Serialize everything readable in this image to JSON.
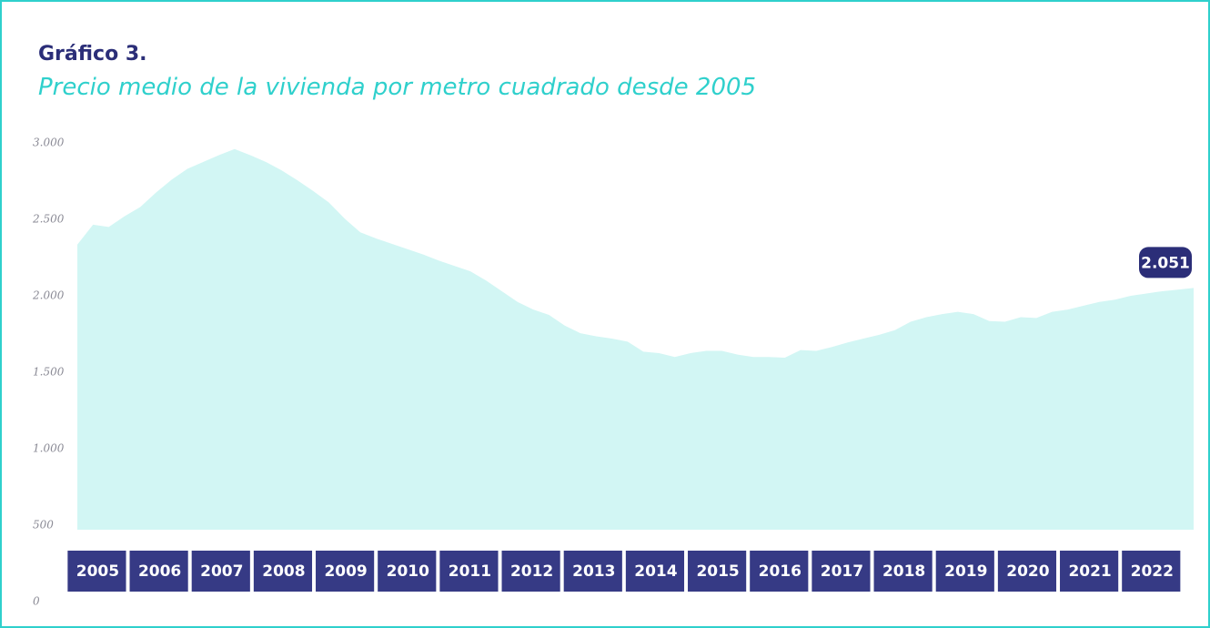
{
  "chart_data": {
    "type": "area",
    "title": "Gráfico 3.",
    "subtitle": "Precio medio de la vivienda por metro cuadrado desde 2005",
    "categories": [
      "2005",
      null,
      null,
      null,
      "2006",
      null,
      null,
      null,
      "2007",
      null,
      null,
      null,
      "2008",
      null,
      null,
      null,
      "2009",
      null,
      null,
      null,
      "2010",
      null,
      null,
      null,
      "2011",
      null,
      null,
      null,
      "2012",
      null,
      null,
      null,
      "2013",
      null,
      null,
      null,
      "2014",
      null,
      null,
      null,
      "2015",
      null,
      null,
      null,
      "2016",
      null,
      null,
      null,
      "2017",
      null,
      null,
      null,
      "2018",
      null,
      null,
      null,
      "2019",
      null,
      null,
      null,
      "2020",
      null,
      null,
      null,
      "2021",
      null,
      null,
      null,
      "2022",
      null,
      null,
      null
    ],
    "values": [
      2335,
      2465,
      2450,
      2520,
      2580,
      2675,
      2760,
      2830,
      2875,
      2920,
      2960,
      2920,
      2875,
      2820,
      2755,
      2685,
      2610,
      2505,
      2415,
      2375,
      2340,
      2305,
      2270,
      2230,
      2195,
      2160,
      2100,
      2030,
      1960,
      1910,
      1875,
      1805,
      1755,
      1735,
      1720,
      1700,
      1635,
      1625,
      1600,
      1625,
      1640,
      1640,
      1615,
      1600,
      1600,
      1595,
      1645,
      1640,
      1665,
      1695,
      1720,
      1745,
      1775,
      1830,
      1860,
      1880,
      1895,
      1880,
      1835,
      1830,
      1860,
      1855,
      1895,
      1910,
      1935,
      1960,
      1975,
      2000,
      2015,
      2030,
      2040,
      2051
    ],
    "value_labels": [
      null,
      null,
      null,
      null,
      null,
      null,
      null,
      null,
      null,
      null,
      null,
      null,
      null,
      null,
      null,
      null,
      null,
      null,
      null,
      null,
      null,
      null,
      null,
      null,
      null,
      null,
      null,
      null,
      null,
      null,
      null,
      null,
      null,
      null,
      null,
      null,
      null,
      null,
      null,
      null,
      null,
      null,
      null,
      null,
      null,
      null,
      null,
      null,
      null,
      null,
      null,
      null,
      null,
      null,
      null,
      null,
      null,
      null,
      null,
      null,
      null,
      null,
      null,
      null,
      null,
      null,
      null,
      null,
      null,
      null,
      null,
      "2.051"
    ],
    "color": "#d2f6f4",
    "ylim": [
      0,
      3000
    ],
    "yticks": [
      0,
      {
        "value": 500,
        "label": "500"
      },
      {
        "value": 1000,
        "label": "1.000"
      },
      {
        "value": 1500,
        "label": "1.500"
      },
      {
        "value": 2000,
        "label": "2.000"
      },
      {
        "value": 2500,
        "label": "2.500"
      },
      {
        "value": 3000,
        "label": "3.000"
      }
    ],
    "grid": false
  }
}
